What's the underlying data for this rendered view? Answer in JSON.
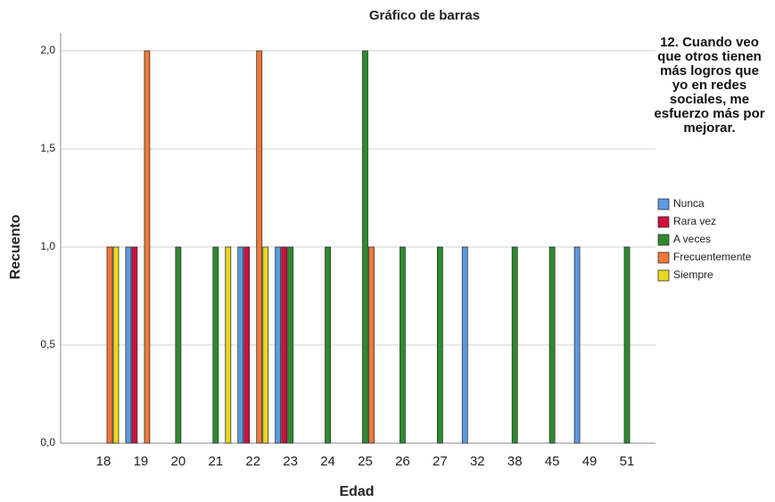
{
  "chart_data": {
    "type": "bar",
    "title": "Gráfico de barras",
    "x_label": "Edad",
    "y_label": "Recuento",
    "legend_title": "12. Cuando veo que otros tienen más logros que yo en redes sociales, me esfuerzo más por mejorar.",
    "categories": [
      "18",
      "19",
      "20",
      "21",
      "22",
      "23",
      "24",
      "25",
      "26",
      "27",
      "32",
      "38",
      "45",
      "49",
      "51"
    ],
    "series": [
      {
        "name": "Nunca",
        "color": "#5b9be0",
        "values": [
          0,
          1,
          0,
          0,
          1,
          1,
          0,
          0,
          0,
          0,
          1,
          0,
          0,
          1,
          0
        ]
      },
      {
        "name": "Rara vez",
        "color": "#d0103a",
        "values": [
          0,
          1,
          0,
          0,
          1,
          1,
          0,
          0,
          0,
          0,
          0,
          0,
          0,
          0,
          0
        ]
      },
      {
        "name": "A veces",
        "color": "#2f8a2f",
        "values": [
          0,
          0,
          1,
          1,
          0,
          1,
          1,
          2,
          1,
          1,
          0,
          1,
          1,
          0,
          1
        ]
      },
      {
        "name": "Frecuentemente",
        "color": "#f07838",
        "values": [
          1,
          2,
          0,
          0,
          2,
          0,
          0,
          1,
          0,
          0,
          0,
          0,
          0,
          0,
          0
        ]
      },
      {
        "name": "Siempre",
        "color": "#e8d820",
        "values": [
          1,
          0,
          0,
          1,
          1,
          0,
          0,
          0,
          0,
          0,
          0,
          0,
          0,
          0,
          0
        ]
      }
    ],
    "ylim": [
      0,
      2
    ],
    "yticks": [
      {
        "value": 0,
        "label": "0,0"
      },
      {
        "value": 0.5,
        "label": "0,5"
      },
      {
        "value": 1,
        "label": "1,0"
      },
      {
        "value": 1.5,
        "label": "1,5"
      },
      {
        "value": 2,
        "label": "2,0"
      }
    ],
    "grid": true
  }
}
